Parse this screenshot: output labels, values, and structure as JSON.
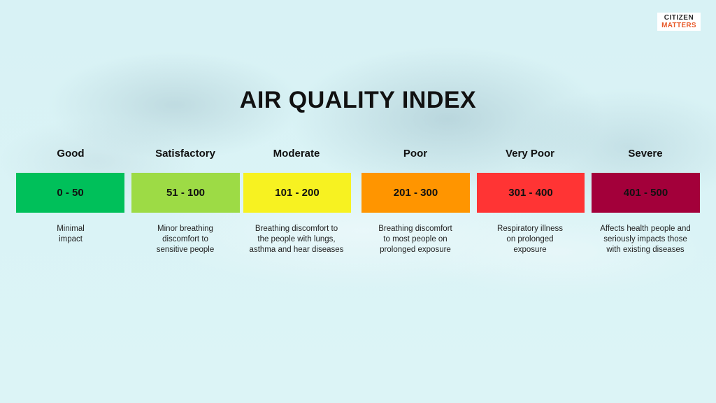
{
  "logo": {
    "line1": "CITIZEN",
    "line2": "MATTERS"
  },
  "title": "AIR QUALITY INDEX",
  "levels": [
    {
      "name": "Good",
      "range": "0 - 50",
      "color": "#00c05a",
      "desc": [
        "Minimal",
        "impact"
      ]
    },
    {
      "name": "Satisfactory",
      "range": "51 - 100",
      "color": "#9ddb45",
      "desc": [
        "Minor breathing",
        "discomfort to",
        "sensitive people"
      ]
    },
    {
      "name": "Moderate",
      "range": "101 - 200",
      "color": "#f7f221",
      "desc": [
        "Breathing discomfort to",
        "the people with lungs,",
        "asthma and hear diseases"
      ]
    },
    {
      "name": "Poor",
      "range": "201 - 300",
      "color": "#ff9500",
      "desc": [
        "Breathing discomfort",
        "to most people on",
        "prolonged exposure"
      ]
    },
    {
      "name": "Very Poor",
      "range": "301 - 400",
      "color": "#ff3434",
      "desc": [
        "Respiratory illness",
        "on prolonged",
        "exposure"
      ]
    },
    {
      "name": "Severe",
      "range": "401 - 500",
      "color": "#a3003a",
      "desc": [
        "Affects health people and",
        "seriously impacts those",
        "with existing diseases"
      ]
    }
  ]
}
